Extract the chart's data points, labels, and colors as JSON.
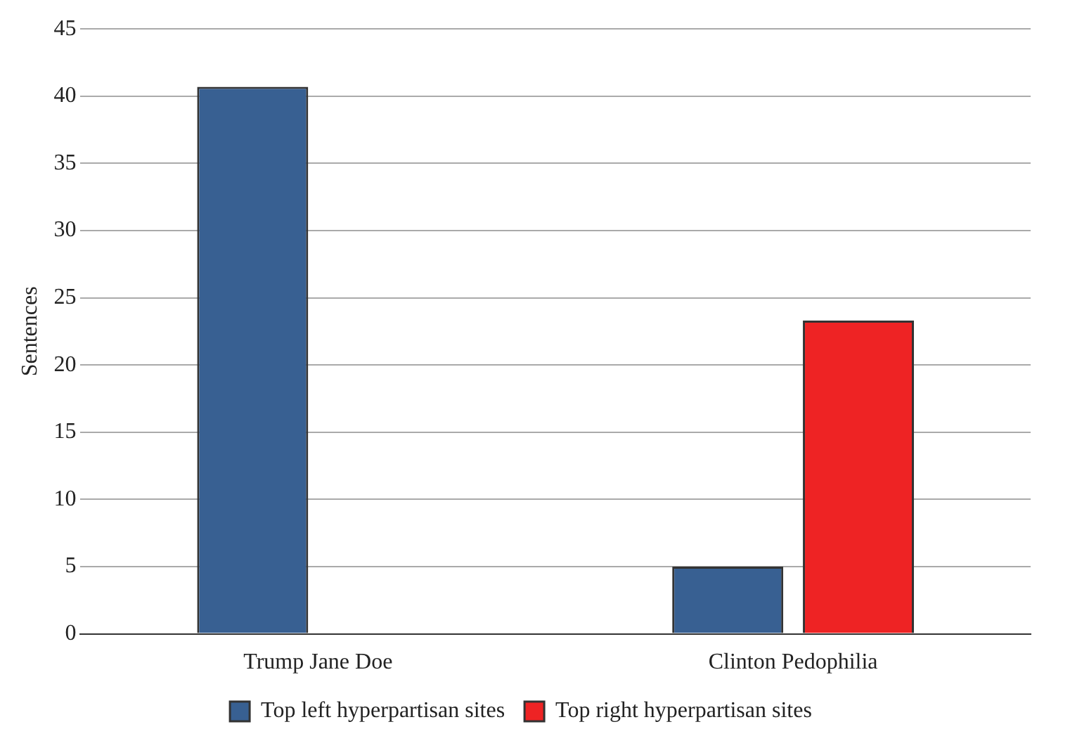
{
  "chart_data": {
    "type": "bar",
    "ylabel": "Sentences",
    "categories": [
      "Trump Jane Doe",
      "Clinton Pedophilia"
    ],
    "series": [
      {
        "name": "Top left hyperpartisan sites",
        "color": "#386092",
        "values": [
          40.7,
          5
        ]
      },
      {
        "name": "Top right hyperpartisan sites",
        "color": "#ee2324",
        "values": [
          0,
          23.3
        ]
      }
    ],
    "ylim": [
      0,
      45
    ],
    "yticks": [
      0,
      5,
      10,
      15,
      20,
      25,
      30,
      35,
      40,
      45
    ],
    "grid": "y",
    "legend": "bottom"
  }
}
